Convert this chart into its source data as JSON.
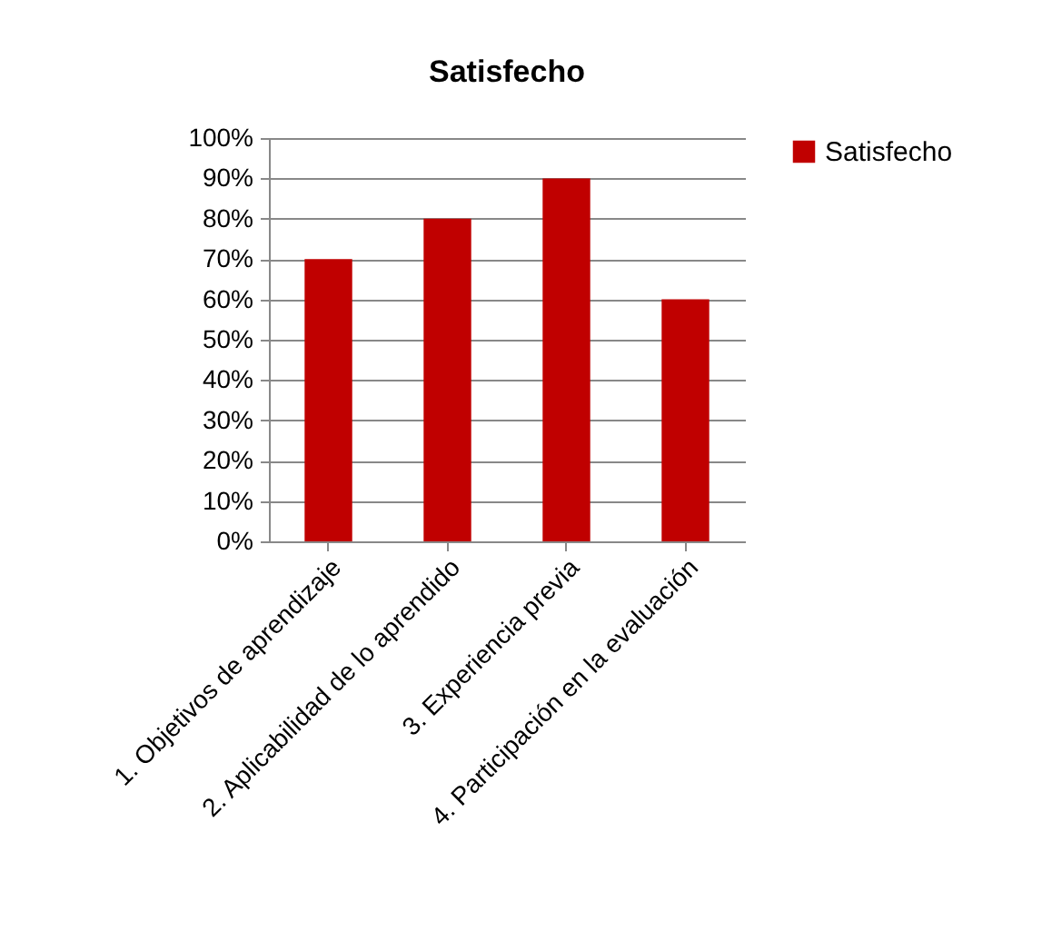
{
  "chart_data": {
    "type": "bar",
    "title": "Satisfecho",
    "categories": [
      "1. Objetivos de aprendizaje",
      "2. Aplicabilidad de lo aprendido",
      "3. Experiencia previa",
      "4. Participación en la evaluación"
    ],
    "series": [
      {
        "name": "Satisfecho",
        "color": "#c00000",
        "values": [
          70,
          80,
          90,
          60
        ]
      }
    ],
    "ylim": [
      0,
      100
    ],
    "yticks": [
      {
        "value": 0,
        "label": "0%"
      },
      {
        "value": 10,
        "label": "10%"
      },
      {
        "value": 20,
        "label": "20%"
      },
      {
        "value": 30,
        "label": "30%"
      },
      {
        "value": 40,
        "label": "40%"
      },
      {
        "value": 50,
        "label": "50%"
      },
      {
        "value": 60,
        "label": "60%"
      },
      {
        "value": 70,
        "label": "70%"
      },
      {
        "value": 80,
        "label": "80%"
      },
      {
        "value": 90,
        "label": "90%"
      },
      {
        "value": 100,
        "label": "100%"
      }
    ],
    "grid": "y",
    "legend": "right"
  }
}
